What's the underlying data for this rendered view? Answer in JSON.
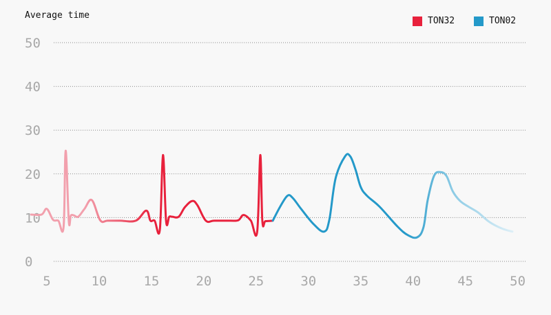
{
  "chart_data": {
    "type": "line",
    "title": "Average time",
    "xlabel": "",
    "ylabel": "",
    "xlim": [
      2.5,
      52
    ],
    "ylim": [
      0,
      50
    ],
    "x_ticks": [
      "5",
      "10",
      "15",
      "20",
      "25",
      "30",
      "35",
      "40",
      "45",
      "50"
    ],
    "y_ticks": [
      "0",
      "10",
      "20",
      "30",
      "40",
      "50"
    ],
    "grid": "horizontal-dotted",
    "legend_position": "top-right",
    "series": [
      {
        "name": "TON32",
        "color": "#e8213c",
        "fade_color": "#f2a0ad",
        "x": [
          3.5,
          4.5,
          5.0,
          5.6,
          6.1,
          6.6,
          6.8,
          7.1,
          7.3,
          7.6,
          8.0,
          8.6,
          9.3,
          10.1,
          10.8,
          12.0,
          13.5,
          14.5,
          14.9,
          15.3,
          15.8,
          16.1,
          16.4,
          16.7,
          17.0,
          17.6,
          18.2,
          18.9,
          19.4,
          20.2,
          21.0,
          22.5,
          23.3,
          23.8,
          24.5,
          25.1,
          25.4,
          25.6,
          25.9,
          26.6
        ],
        "y": [
          10.7,
          10.7,
          12.0,
          9.5,
          9.3,
          7.8,
          25.3,
          9.2,
          10.5,
          10.5,
          10.2,
          12.0,
          14.0,
          9.4,
          9.3,
          9.3,
          9.3,
          11.6,
          9.3,
          9.3,
          7.2,
          24.3,
          9.2,
          10.2,
          10.2,
          10.2,
          12.4,
          13.8,
          12.8,
          9.3,
          9.3,
          9.3,
          9.4,
          10.6,
          9.3,
          6.7,
          24.3,
          9.2,
          9.2,
          9.3
        ]
      },
      {
        "name": "TON02",
        "color": "#2499c9",
        "fade_color": "#ddeff7",
        "x": [
          26.6,
          27.3,
          28.0,
          28.5,
          29.3,
          30.5,
          31.5,
          32.0,
          32.6,
          33.5,
          34.0,
          34.5,
          35.0,
          35.6,
          36.8,
          38.5,
          39.5,
          40.4,
          41.0,
          41.4,
          42.0,
          42.6,
          43.2,
          43.8,
          44.5,
          45.3,
          46.2,
          47.3,
          48.5,
          49.5
        ],
        "y": [
          9.3,
          12.5,
          15.0,
          14.5,
          12.0,
          8.5,
          6.8,
          9.5,
          19.0,
          24.0,
          24.0,
          21.0,
          17.0,
          15.0,
          12.5,
          8.0,
          6.0,
          5.5,
          7.8,
          14.0,
          19.5,
          20.4,
          19.5,
          16.0,
          13.8,
          12.5,
          11.2,
          9.0,
          7.5,
          6.8
        ]
      }
    ]
  }
}
